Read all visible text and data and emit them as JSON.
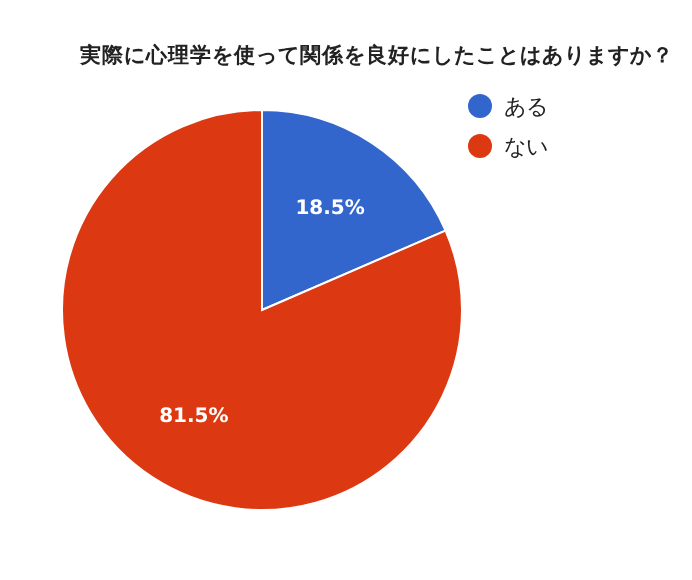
{
  "chart_data": {
    "type": "pie",
    "title": "実際に心理学を使って関係を良好にしたことはありますか？",
    "categories": [
      "ある",
      "ない"
    ],
    "values": [
      18.5,
      81.5
    ],
    "colors": [
      "#3366cc",
      "#dc3912"
    ],
    "value_labels": [
      "18.5%",
      "81.5%"
    ],
    "legend": "top right"
  }
}
